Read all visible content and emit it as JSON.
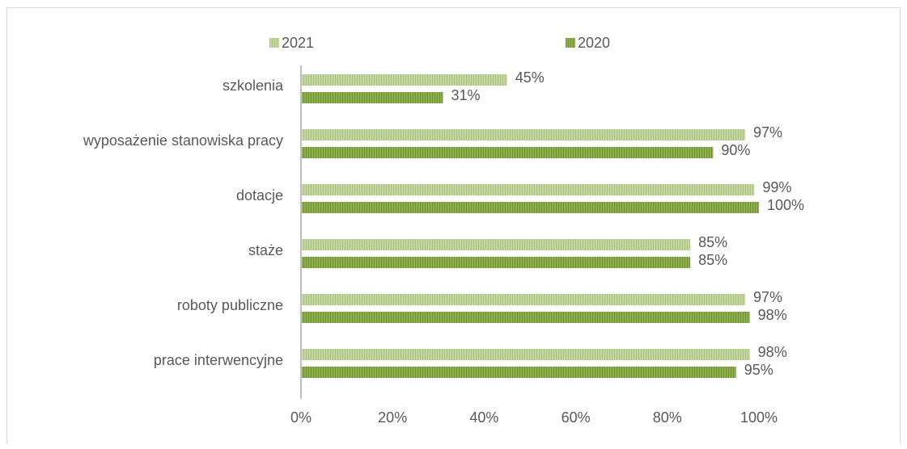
{
  "chart_data": {
    "type": "bar",
    "orientation": "horizontal",
    "categories": [
      "szkolenia",
      "wyposażenie stanowiska pracy",
      "dotacje",
      "staże",
      "roboty publiczne",
      "prace interwencyjne"
    ],
    "series": [
      {
        "name": "2021",
        "values": [
          45,
          97,
          99,
          85,
          97,
          98
        ],
        "labels": [
          "45%",
          "97%",
          "99%",
          "85%",
          "97%",
          "98%"
        ],
        "color": "#c5d8a4",
        "stripe_color": "#a9c27a"
      },
      {
        "name": "2020",
        "values": [
          31,
          90,
          100,
          85,
          98,
          95
        ],
        "labels": [
          "31%",
          "90%",
          "100%",
          "85%",
          "98%",
          "95%"
        ],
        "color": "#8fb04f",
        "stripe_color": "#6f8f33"
      }
    ],
    "x_ticks": [
      "0%",
      "20%",
      "40%",
      "60%",
      "80%",
      "100%"
    ],
    "xlim": [
      0,
      100
    ],
    "title": "",
    "xlabel": "",
    "ylabel": "",
    "legend_position": "top",
    "grid": false,
    "axis_color": "#bfbfbf",
    "text_color": "#595959"
  }
}
